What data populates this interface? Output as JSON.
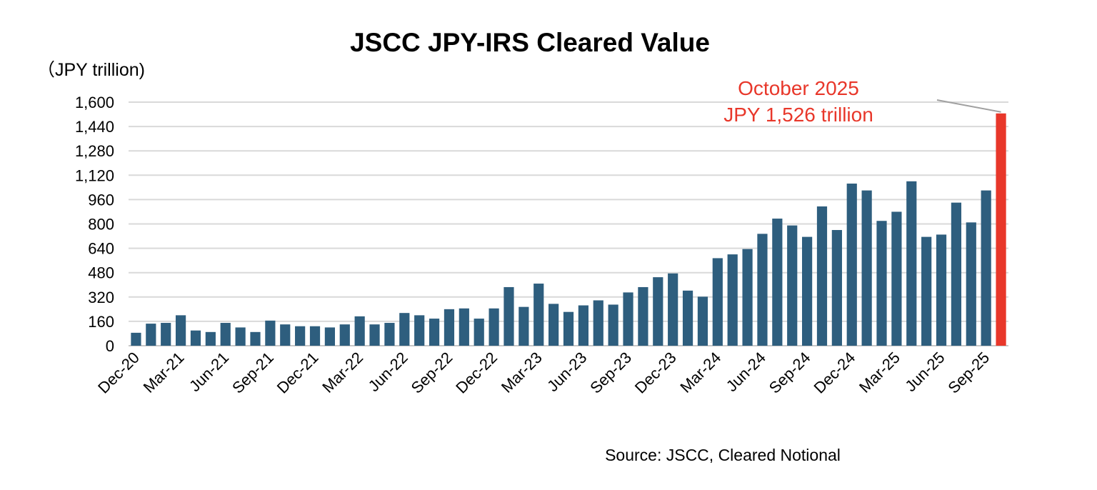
{
  "chart_data": {
    "type": "bar",
    "title": "JSCC JPY-IRS Cleared Value",
    "ylabel": "（JPY trillion)",
    "xlabel": "",
    "source": "Source: JSCC, Cleared Notional",
    "ylim": [
      0,
      1600
    ],
    "yticks": [
      0,
      160,
      320,
      480,
      640,
      800,
      960,
      1120,
      1280,
      1440,
      1600
    ],
    "ytick_labels": [
      "0",
      "160",
      "320",
      "480",
      "640",
      "800",
      "960",
      "1,120",
      "1,280",
      "1,440",
      "1,600"
    ],
    "grid": true,
    "categories": [
      "Dec-20",
      "Jan-21",
      "Feb-21",
      "Mar-21",
      "Apr-21",
      "May-21",
      "Jun-21",
      "Jul-21",
      "Aug-21",
      "Sep-21",
      "Oct-21",
      "Nov-21",
      "Dec-21",
      "Jan-22",
      "Feb-22",
      "Mar-22",
      "Apr-22",
      "May-22",
      "Jun-22",
      "Jul-22",
      "Aug-22",
      "Sep-22",
      "Oct-22",
      "Nov-22",
      "Dec-22",
      "Jan-23",
      "Feb-23",
      "Mar-23",
      "Apr-23",
      "May-23",
      "Jun-23",
      "Jul-23",
      "Aug-23",
      "Sep-23",
      "Oct-23",
      "Nov-23",
      "Dec-23",
      "Jan-24",
      "Feb-24",
      "Mar-24",
      "Apr-24",
      "May-24",
      "Jun-24",
      "Jul-24",
      "Aug-24",
      "Sep-24",
      "Oct-24",
      "Nov-24",
      "Dec-24",
      "Jan-25",
      "Feb-25",
      "Mar-25",
      "Apr-25",
      "May-25",
      "Jun-25",
      "Jul-25",
      "Aug-25",
      "Sep-25",
      "Oct-25"
    ],
    "xtick_labels": [
      "Dec-20",
      "Mar-21",
      "Jun-21",
      "Sep-21",
      "Dec-21",
      "Mar-22",
      "Jun-22",
      "Sep-22",
      "Dec-22",
      "Mar-23",
      "Jun-23",
      "Sep-23",
      "Dec-23",
      "Mar-24",
      "Jun-24",
      "Sep-24",
      "Dec-24",
      "Mar-25",
      "Jun-25",
      "Sep-25"
    ],
    "values": [
      85,
      145,
      150,
      200,
      100,
      90,
      150,
      120,
      90,
      165,
      140,
      128,
      128,
      120,
      140,
      193,
      140,
      150,
      215,
      200,
      178,
      240,
      245,
      178,
      245,
      385,
      255,
      408,
      275,
      222,
      265,
      298,
      270,
      350,
      385,
      450,
      475,
      362,
      322,
      575,
      600,
      635,
      735,
      835,
      790,
      715,
      915,
      760,
      1065,
      1020,
      820,
      880,
      1080,
      715,
      730,
      940,
      810,
      1020,
      1526
    ],
    "colors": {
      "bar": "#2e5e7e",
      "highlight": "#e8372a",
      "grid": "#d9d9d9"
    },
    "highlight_index": 58,
    "annotation": {
      "line1": "October 2025",
      "line2": "JPY 1,526 trillion"
    }
  }
}
